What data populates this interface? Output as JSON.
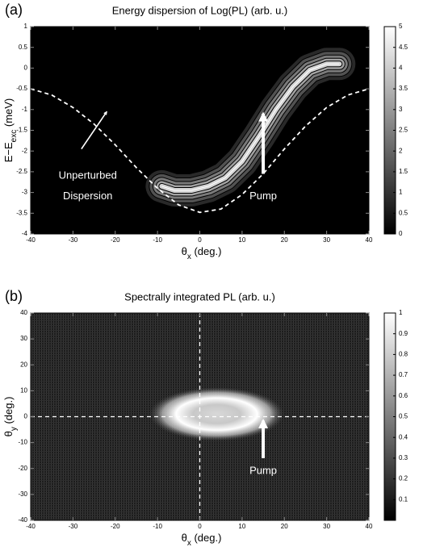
{
  "chart_data": [
    {
      "type": "contour",
      "panel_label": "(a)",
      "title": "Energy dispersion of Log(PL) (arb. u.)",
      "xlabel": [
        "θ",
        "x",
        " (deg.)"
      ],
      "ylabel": [
        "E−E",
        "exc",
        " (meV)"
      ],
      "xlim": [
        -40,
        40
      ],
      "xticks": [
        -40,
        -30,
        -20,
        -10,
        0,
        10,
        20,
        30,
        40
      ],
      "ylim": [
        -4,
        1
      ],
      "yticks": [
        -4,
        -3.5,
        -3,
        -2.5,
        -2,
        -1.5,
        -1,
        -0.5,
        0,
        0.5,
        1
      ],
      "clim": [
        0,
        5
      ],
      "cticks": [
        0,
        0.5,
        1,
        1.5,
        2,
        2.5,
        3,
        3.5,
        4,
        4.5,
        5
      ],
      "levels": [
        0.8,
        1.6,
        2.4,
        3.2,
        4.2
      ],
      "ridge": {
        "x": [
          -9,
          -6,
          -2,
          2,
          6,
          10,
          14,
          18,
          22,
          26,
          30,
          33
        ],
        "y": [
          -2.85,
          -2.95,
          -2.95,
          -2.85,
          -2.65,
          -2.25,
          -1.65,
          -1.0,
          -0.45,
          -0.05,
          0.1,
          0.1
        ]
      },
      "lines": [
        {
          "x": [
            -40,
            -35,
            -30,
            -25,
            -20,
            -15,
            -10,
            -5,
            0,
            5,
            10,
            15,
            20,
            25,
            30,
            35,
            40
          ],
          "y": [
            -0.5,
            -0.65,
            -0.95,
            -1.35,
            -1.85,
            -2.4,
            -2.9,
            -3.3,
            -3.48,
            -3.4,
            -3.05,
            -2.55,
            -1.95,
            -1.4,
            -0.95,
            -0.65,
            -0.5
          ],
          "color": "#ffffff"
        }
      ],
      "annotations": [
        {
          "text": "Unperturbed",
          "x": -26.5,
          "y": -2.6,
          "arrow": {
            "from": [
              -28,
              -1.95
            ],
            "to": [
              -22,
              -1.05
            ]
          }
        },
        {
          "text": "Dispersion",
          "x": -26.5,
          "y": -3.1
        },
        {
          "text": "Pump",
          "x": 15,
          "y": -3.1,
          "arrow": {
            "from": [
              15,
              -2.55
            ],
            "to": [
              15,
              -1.1
            ]
          }
        }
      ]
    },
    {
      "type": "heatmap",
      "panel_label": "(b)",
      "title": "Spectrally integrated PL (arb. u.)",
      "xlabel": [
        "θ",
        "x",
        " (deg.)"
      ],
      "ylabel": [
        "θ",
        "y",
        " (deg.)"
      ],
      "xlim": [
        -40,
        40
      ],
      "xticks": [
        -40,
        -30,
        -20,
        -10,
        0,
        10,
        20,
        30,
        40
      ],
      "ylim": [
        -40,
        40
      ],
      "yticks": [
        -40,
        -30,
        -20,
        -10,
        0,
        10,
        20,
        30,
        40
      ],
      "clim": [
        0,
        1
      ],
      "cticks": [
        0.1,
        0.2,
        0.3,
        0.4,
        0.5,
        0.6,
        0.7,
        0.8,
        0.9,
        1
      ],
      "peak": {
        "x": 4,
        "y": 1,
        "sx": 10,
        "sy": 6.5,
        "value": 1
      },
      "hlines": [
        0
      ],
      "vlines": [
        0
      ],
      "annotations": [
        {
          "text": "Pump",
          "x": 15,
          "y": -21,
          "arrow": {
            "from": [
              15,
              -16
            ],
            "to": [
              15,
              -1.5
            ]
          }
        }
      ]
    }
  ]
}
